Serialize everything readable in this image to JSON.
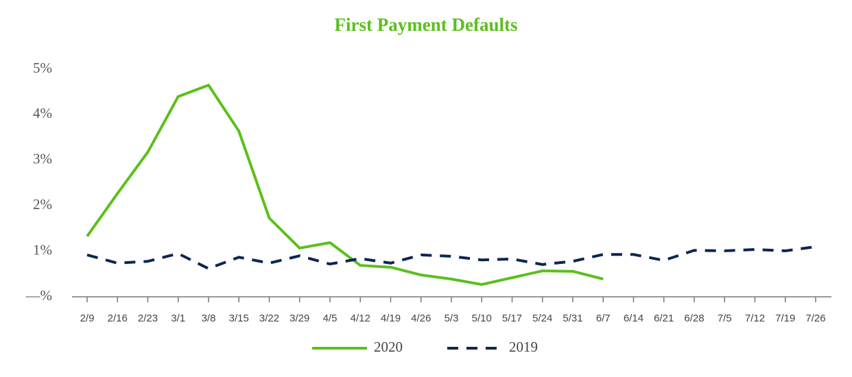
{
  "chart_data": {
    "type": "line",
    "title": "First Payment Defaults",
    "categories": [
      "2/9",
      "2/16",
      "2/23",
      "3/1",
      "3/8",
      "3/15",
      "3/22",
      "3/29",
      "4/5",
      "4/12",
      "4/19",
      "4/26",
      "5/3",
      "5/10",
      "5/17",
      "5/24",
      "5/31",
      "6/7",
      "6/14",
      "6/21",
      "6/28",
      "7/5",
      "7/12",
      "7/19",
      "7/26"
    ],
    "series": [
      {
        "name": "2020",
        "color": "#5cbf1d",
        "style": "solid",
        "values": [
          1.33,
          2.27,
          3.18,
          4.4,
          4.65,
          3.64,
          1.73,
          1.07,
          1.19,
          0.69,
          0.65,
          0.48,
          0.39,
          0.27,
          0.42,
          0.57,
          0.56,
          0.39,
          null,
          null,
          null,
          null,
          null,
          null,
          null
        ]
      },
      {
        "name": "2019",
        "color": "#0c2554",
        "style": "dashed",
        "values": [
          0.92,
          0.74,
          0.78,
          0.95,
          0.62,
          0.87,
          0.74,
          0.9,
          0.72,
          0.84,
          0.74,
          0.92,
          0.89,
          0.81,
          0.83,
          0.71,
          0.78,
          0.93,
          0.93,
          0.8,
          1.02,
          1.01,
          1.04,
          1.01,
          1.1
        ]
      }
    ],
    "ylim": [
      0,
      5
    ],
    "yticks": [
      {
        "value": 0,
        "label": "—%"
      },
      {
        "value": 1,
        "label": "1%"
      },
      {
        "value": 2,
        "label": "2%"
      },
      {
        "value": 3,
        "label": "3%"
      },
      {
        "value": 4,
        "label": "4%"
      },
      {
        "value": 5,
        "label": "5%"
      }
    ],
    "grid": false,
    "legend": "bottom"
  }
}
